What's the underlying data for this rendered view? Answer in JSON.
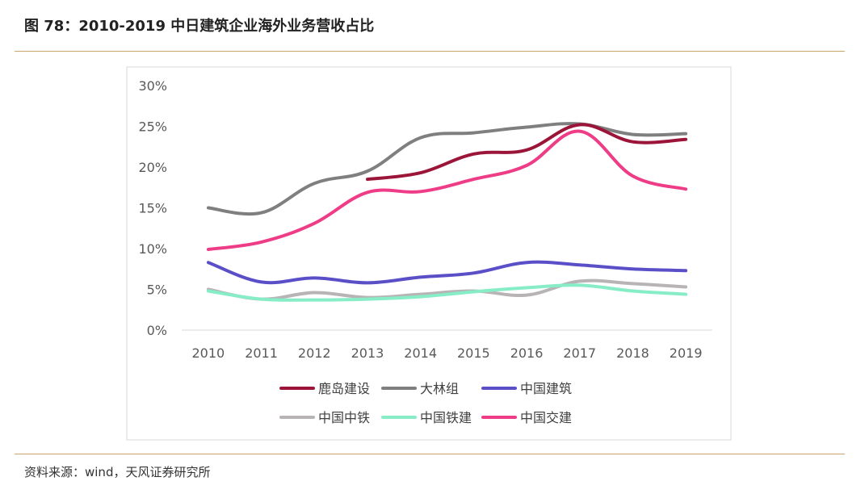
{
  "figure": {
    "title": "图 78：2010-2019 中日建筑企业海外业务营收占比",
    "source": "资料来源：wind，天风证券研究所"
  },
  "chart_data": {
    "type": "line",
    "title": "",
    "xlabel": "",
    "ylabel": "",
    "x": [
      "2010",
      "2011",
      "2012",
      "2013",
      "2014",
      "2015",
      "2016",
      "2017",
      "2018",
      "2019"
    ],
    "ylim": [
      0,
      30
    ],
    "yticks": [
      "0%",
      "5%",
      "10%",
      "15%",
      "20%",
      "25%",
      "30%"
    ],
    "grid": false,
    "legend_position": "bottom",
    "series": [
      {
        "name": "鹿岛建设",
        "color": "#9b1538",
        "values": [
          null,
          null,
          null,
          18.5,
          19.3,
          21.6,
          22.1,
          25.2,
          23.1,
          23.4
        ]
      },
      {
        "name": "大林组",
        "color": "#7f7f7f",
        "values": [
          15.0,
          14.4,
          18.0,
          19.5,
          23.6,
          24.2,
          24.9,
          25.3,
          24.0,
          24.1
        ]
      },
      {
        "name": "中国建筑",
        "color": "#5b4fc8",
        "values": [
          8.3,
          5.9,
          6.4,
          5.8,
          6.5,
          7.0,
          8.3,
          8.0,
          7.5,
          7.3
        ]
      },
      {
        "name": "中国中铁",
        "color": "#b8b3b5",
        "values": [
          5.0,
          3.8,
          4.6,
          4.0,
          4.4,
          4.8,
          4.3,
          6.0,
          5.7,
          5.3
        ]
      },
      {
        "name": "中国铁建",
        "color": "#86edc6",
        "values": [
          4.8,
          3.8,
          3.7,
          3.8,
          4.1,
          4.7,
          5.2,
          5.5,
          4.8,
          4.4
        ]
      },
      {
        "name": "中国交建",
        "color": "#ee3c87",
        "values": [
          9.9,
          10.8,
          13.1,
          16.9,
          17.0,
          18.5,
          20.2,
          24.4,
          18.9,
          17.3
        ]
      }
    ]
  }
}
